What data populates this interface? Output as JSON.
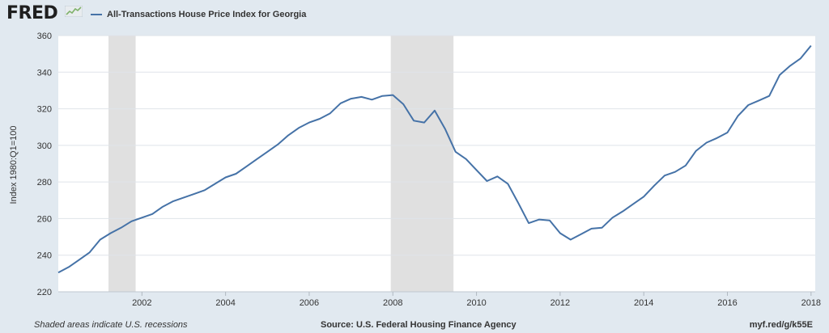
{
  "header": {
    "logo_text": "FRED",
    "legend_label": "All-Transactions House Price Index for Georgia"
  },
  "footer": {
    "note": "Shaded areas indicate U.S. recessions",
    "source": "Source: U.S. Federal Housing Finance Agency",
    "link": "myf.red/g/k55E"
  },
  "colors": {
    "series": "#4572a7",
    "recession": "#e0e0e0",
    "background": "#e1e9f0",
    "plot": "#ffffff",
    "grid": "#dfe4ea"
  },
  "chart_data": {
    "type": "line",
    "title": "",
    "xlabel": "",
    "ylabel": "Index 1980:Q1=100",
    "xlim": [
      2000.0,
      2018.1
    ],
    "ylim": [
      220,
      360
    ],
    "yticks": [
      220,
      240,
      260,
      280,
      300,
      320,
      340,
      360
    ],
    "xticks": [
      2002,
      2004,
      2006,
      2008,
      2010,
      2012,
      2014,
      2016,
      2018
    ],
    "xtick_labels": [
      "2002",
      "2004",
      "2006",
      "2008",
      "2010",
      "2012",
      "2014",
      "2016",
      "2018"
    ],
    "recessions": [
      [
        2001.2,
        2001.85
      ],
      [
        2007.95,
        2009.45
      ]
    ],
    "grid": true,
    "series": [
      {
        "name": "All-Transactions House Price Index for Georgia",
        "x": [
          2000.0,
          2000.25,
          2000.5,
          2000.75,
          2001.0,
          2001.25,
          2001.5,
          2001.75,
          2002.0,
          2002.25,
          2002.5,
          2002.75,
          2003.0,
          2003.25,
          2003.5,
          2003.75,
          2004.0,
          2004.25,
          2004.5,
          2004.75,
          2005.0,
          2005.25,
          2005.5,
          2005.75,
          2006.0,
          2006.25,
          2006.5,
          2006.75,
          2007.0,
          2007.25,
          2007.5,
          2007.75,
          2008.0,
          2008.25,
          2008.5,
          2008.75,
          2009.0,
          2009.25,
          2009.5,
          2009.75,
          2010.0,
          2010.25,
          2010.5,
          2010.75,
          2011.0,
          2011.25,
          2011.5,
          2011.75,
          2012.0,
          2012.25,
          2012.5,
          2012.75,
          2013.0,
          2013.25,
          2013.5,
          2013.75,
          2014.0,
          2014.25,
          2014.5,
          2014.75,
          2015.0,
          2015.25,
          2015.5,
          2015.75,
          2016.0,
          2016.25,
          2016.5,
          2016.75,
          2017.0,
          2017.25,
          2017.5,
          2017.75,
          2018.0
        ],
        "values": [
          230.5,
          233.5,
          237.5,
          241.5,
          248.5,
          252,
          255,
          258.5,
          260.5,
          262.5,
          266.5,
          269.5,
          271.5,
          273.5,
          275.5,
          279,
          282.5,
          284.5,
          288.5,
          292.5,
          296.5,
          300.5,
          305.5,
          309.5,
          312.5,
          314.5,
          317.5,
          323,
          325.5,
          326.5,
          325,
          327,
          327.5,
          322.5,
          313.5,
          312.5,
          319,
          309,
          296.5,
          292.5,
          286.5,
          280.5,
          283,
          279,
          268.5,
          257.5,
          259.5,
          259,
          252,
          248.5,
          251.5,
          254.5,
          255,
          260.5,
          264,
          268,
          272,
          278,
          283.5,
          285.5,
          289,
          297,
          301.5,
          304,
          307,
          316,
          322,
          324.5,
          327,
          338.5,
          343.5,
          347.5,
          354.5
        ]
      }
    ]
  }
}
